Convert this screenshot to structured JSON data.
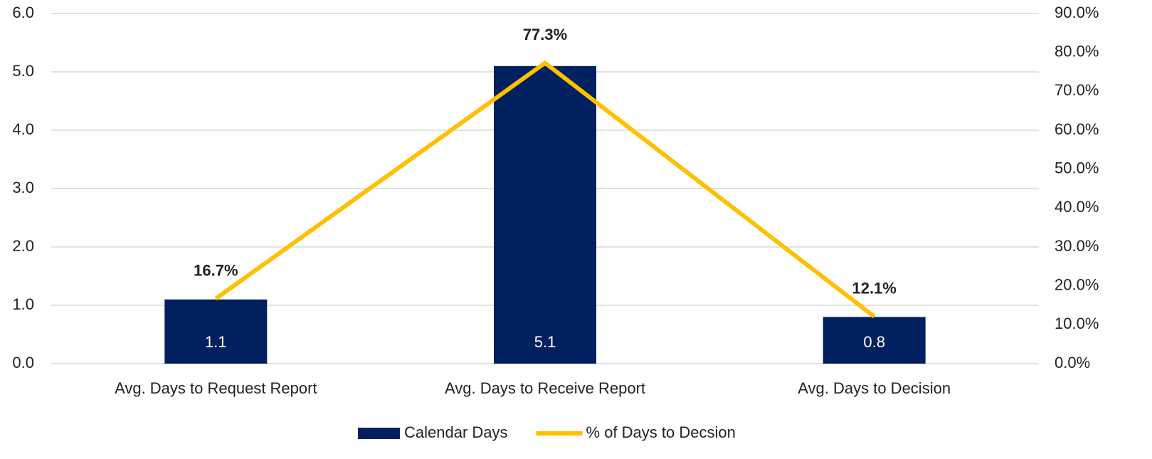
{
  "chart_data": {
    "type": "bar",
    "categories": [
      "Avg. Days to Request Report",
      "Avg. Days to Receive Report",
      "Avg. Days to Decision"
    ],
    "series": [
      {
        "name": "Calendar Days",
        "type": "bar",
        "color": "#002060",
        "values": [
          1.1,
          5.1,
          0.8
        ]
      },
      {
        "name": "% of Days to Decsion",
        "type": "line",
        "axis": "y2",
        "color": "#ffc000",
        "values": [
          16.7,
          77.3,
          12.1
        ],
        "value_labels": [
          "16.7%",
          "77.3%",
          "12.1%"
        ]
      }
    ],
    "ylim": [
      0,
      6
    ],
    "yticks": [
      {
        "value": 0,
        "label": "0.0"
      },
      {
        "value": 1,
        "label": "1.0"
      },
      {
        "value": 2,
        "label": "2.0"
      },
      {
        "value": 3,
        "label": "3.0"
      },
      {
        "value": 4,
        "label": "4.0"
      },
      {
        "value": 5,
        "label": "5.0"
      },
      {
        "value": 6,
        "label": "6.0"
      }
    ],
    "y2lim": [
      0,
      90
    ],
    "y2ticks": [
      {
        "value": 0,
        "label": "0.0%"
      },
      {
        "value": 10,
        "label": "10.0%"
      },
      {
        "value": 20,
        "label": "20.0%"
      },
      {
        "value": 30,
        "label": "30.0%"
      },
      {
        "value": 40,
        "label": "40.0%"
      },
      {
        "value": 50,
        "label": "50.0%"
      },
      {
        "value": 60,
        "label": "60.0%"
      },
      {
        "value": 70,
        "label": "70.0%"
      },
      {
        "value": 80,
        "label": "80.0%"
      },
      {
        "value": 90,
        "label": "90.0%"
      }
    ],
    "grid": true,
    "legend": "bottom"
  }
}
